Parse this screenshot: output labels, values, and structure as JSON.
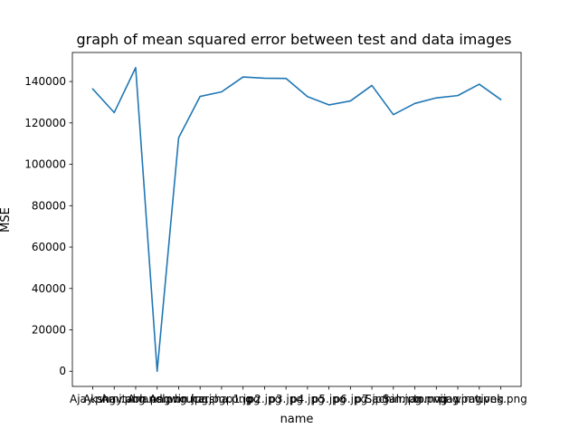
{
  "chart_data": {
    "type": "line",
    "title": "graph of mean squared error between test and data images",
    "xlabel": "name",
    "ylabel": "MSE",
    "categories": [
      "Ajay.png",
      "Akshay.png",
      "Amitabh.png",
      "Anand.png",
      "Ashwin.jpg",
      "bruce.jpg",
      "harsha.png",
      "p1.jpg",
      "p2.jpg",
      "p3.jpg",
      "p4.jpg",
      "p5.jpg",
      "p6.jpg",
      "p7.jpg",
      "Sachin.jpg",
      "Salman.png",
      "tom.png",
      "vijay.png",
      "virat.png",
      "vivek.png"
    ],
    "values": [
      136400,
      125000,
      146700,
      0,
      112800,
      132800,
      135000,
      142200,
      141600,
      141500,
      132700,
      128700,
      130600,
      138100,
      124000,
      129400,
      132100,
      133200,
      138700,
      131300
    ],
    "ylim": [
      -7330,
      154030
    ],
    "yticks": [
      0,
      20000,
      40000,
      60000,
      80000,
      100000,
      120000,
      140000
    ],
    "grid": false,
    "line_color": "#1f77b4"
  }
}
